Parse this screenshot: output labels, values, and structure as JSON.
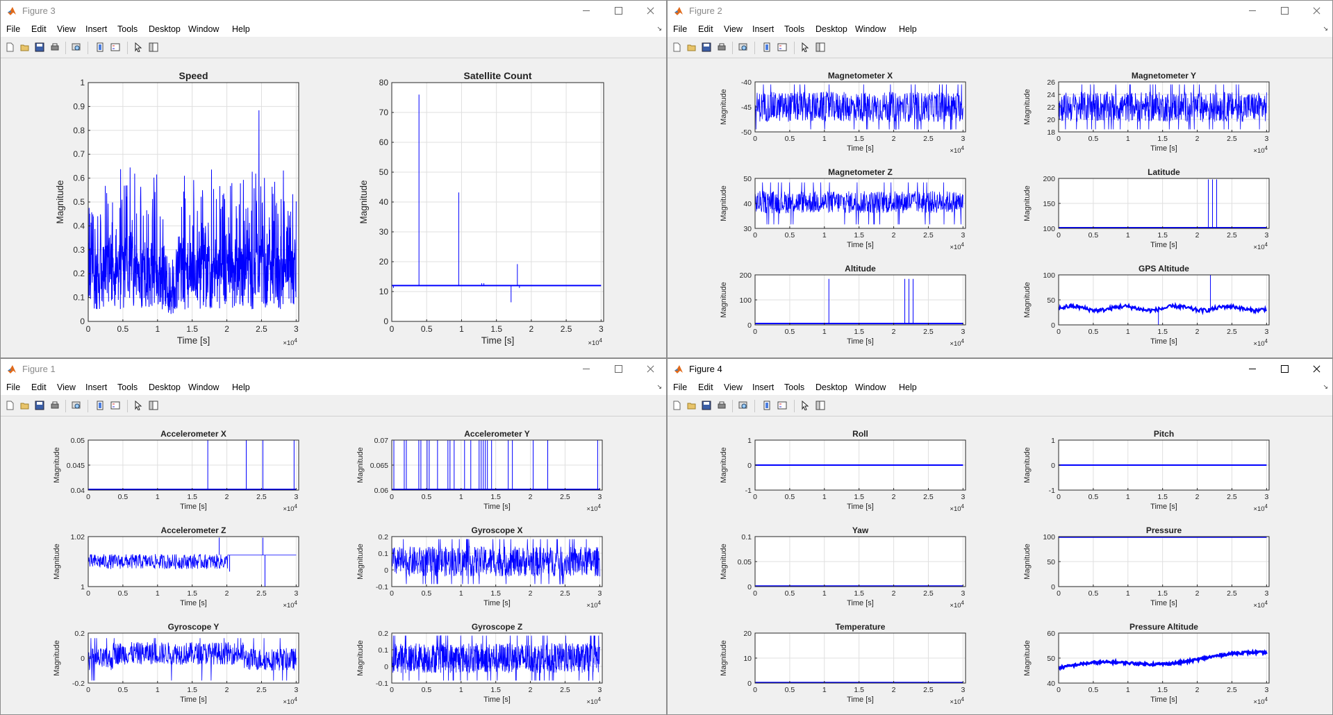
{
  "menu": [
    "File",
    "Edit",
    "View",
    "Insert",
    "Tools",
    "Desktop",
    "Window",
    "Help"
  ],
  "colors": {
    "line": "#0000ff",
    "axes": "#262626",
    "grid": "#dfdfdf",
    "background": "#f0f0f0"
  },
  "toolbar_icons": [
    "new-figure-icon",
    "open-file-icon",
    "save-icon",
    "print-icon",
    "print-preview-icon",
    "colorbar-icon",
    "legend-icon",
    "pointer-icon",
    "property-editor-icon"
  ],
  "windows": [
    {
      "id": "figure-3",
      "title": "Figure 3",
      "active": false,
      "layout": "1x2",
      "axes": [
        {
          "title": "Speed",
          "xlabel": "Time [s]",
          "ylabel": "Magnitude",
          "yticks": [
            "0",
            "0.1",
            "0.2",
            "0.3",
            "0.4",
            "0.5",
            "0.6",
            "0.7",
            "0.8",
            "0.9",
            "1"
          ],
          "xticks": [
            "0",
            "0.5",
            "1",
            "1.5",
            "2",
            "2.5",
            "3"
          ],
          "exponent": "×10",
          "exponent_power": "4"
        },
        {
          "title": "Satellite Count",
          "xlabel": "Time [s]",
          "ylabel": "Magnitude",
          "yticks": [
            "0",
            "10",
            "20",
            "30",
            "40",
            "50",
            "60",
            "70",
            "80"
          ],
          "xticks": [
            "0",
            "0.5",
            "1",
            "1.5",
            "2",
            "2.5",
            "3"
          ],
          "exponent": "×10",
          "exponent_power": "4"
        }
      ]
    },
    {
      "id": "figure-2",
      "title": "Figure 2",
      "active": false,
      "layout": "3x2",
      "axes": [
        {
          "title": "Magnetometer X",
          "xlabel": "Time [s]",
          "ylabel": "Magnitude",
          "yticks": [
            "-50",
            "-45",
            "-40"
          ],
          "xticks": [
            "0",
            "0.5",
            "1",
            "1.5",
            "2",
            "2.5",
            "3"
          ],
          "exponent": "×10",
          "exponent_power": "4"
        },
        {
          "title": "Magnetometer Y",
          "xlabel": "Time [s]",
          "ylabel": "Magnitude",
          "yticks": [
            "18",
            "20",
            "22",
            "24",
            "26"
          ],
          "xticks": [
            "0",
            "0.5",
            "1",
            "1.5",
            "2",
            "2.5",
            "3"
          ],
          "exponent": "×10",
          "exponent_power": "4"
        },
        {
          "title": "Magnetometer Z",
          "xlabel": "Time [s]",
          "ylabel": "Magnitude",
          "yticks": [
            "30",
            "40",
            "50"
          ],
          "xticks": [
            "0",
            "0.5",
            "1",
            "1.5",
            "2",
            "2.5",
            "3"
          ],
          "exponent": "×10",
          "exponent_power": "4"
        },
        {
          "title": "Latitude",
          "xlabel": "Time [s]",
          "ylabel": "Magnitude",
          "yticks": [
            "100",
            "150",
            "200"
          ],
          "xticks": [
            "0",
            "0.5",
            "1",
            "1.5",
            "2",
            "2.5",
            "3"
          ],
          "exponent": "×10",
          "exponent_power": "4"
        },
        {
          "title": "Altitude",
          "xlabel": "Time [s]",
          "ylabel": "Magnitude",
          "yticks": [
            "0",
            "100",
            "200"
          ],
          "xticks": [
            "0",
            "0.5",
            "1",
            "1.5",
            "2",
            "2.5",
            "3"
          ],
          "exponent": "×10",
          "exponent_power": "4"
        },
        {
          "title": "GPS Altitude",
          "xlabel": "Time [s]",
          "ylabel": "Magnitude",
          "yticks": [
            "0",
            "50",
            "100"
          ],
          "xticks": [
            "0",
            "0.5",
            "1",
            "1.5",
            "2",
            "2.5",
            "3"
          ],
          "exponent": "×10",
          "exponent_power": "4"
        }
      ]
    },
    {
      "id": "figure-1",
      "title": "Figure 1",
      "active": false,
      "layout": "3x2",
      "axes": [
        {
          "title": "Accelerometer X",
          "xlabel": "Time [s]",
          "ylabel": "Magnitude",
          "yticks": [
            "0.04",
            "0.045",
            "0.05"
          ],
          "xticks": [
            "0",
            "0.5",
            "1",
            "1.5",
            "2",
            "2.5",
            "3"
          ],
          "exponent": "×10",
          "exponent_power": "4"
        },
        {
          "title": "Accelerometer Y",
          "xlabel": "Time [s]",
          "ylabel": "Magnitude",
          "yticks": [
            "0.06",
            "0.065",
            "0.07"
          ],
          "xticks": [
            "0",
            "0.5",
            "1",
            "1.5",
            "2",
            "2.5",
            "3"
          ],
          "exponent": "×10",
          "exponent_power": "4"
        },
        {
          "title": "Accelerometer Z",
          "xlabel": "Time [s]",
          "ylabel": "Magnitude",
          "yticks": [
            "1",
            "1.02"
          ],
          "xticks": [
            "0",
            "0.5",
            "1",
            "1.5",
            "2",
            "2.5",
            "3"
          ],
          "exponent": "×10",
          "exponent_power": "4"
        },
        {
          "title": "Gyroscope X",
          "xlabel": "Time [s]",
          "ylabel": "Magnitude",
          "yticks": [
            "-0.1",
            "0",
            "0.1",
            "0.2"
          ],
          "xticks": [
            "0",
            "0.5",
            "1",
            "1.5",
            "2",
            "2.5",
            "3"
          ],
          "exponent": "×10",
          "exponent_power": "4"
        },
        {
          "title": "Gyroscope Y",
          "xlabel": "Time [s]",
          "ylabel": "Magnitude",
          "yticks": [
            "-0.2",
            "0",
            "0.2"
          ],
          "xticks": [
            "0",
            "0.5",
            "1",
            "1.5",
            "2",
            "2.5",
            "3"
          ],
          "exponent": "×10",
          "exponent_power": "4"
        },
        {
          "title": "Gyroscope Z",
          "xlabel": "Time [s]",
          "ylabel": "Magnitude",
          "yticks": [
            "-0.1",
            "0",
            "0.1",
            "0.2"
          ],
          "xticks": [
            "0",
            "0.5",
            "1",
            "1.5",
            "2",
            "2.5",
            "3"
          ],
          "exponent": "×10",
          "exponent_power": "4"
        }
      ]
    },
    {
      "id": "figure-4",
      "title": "Figure 4",
      "active": true,
      "layout": "3x2",
      "axes": [
        {
          "title": "Roll",
          "xlabel": "Time [s]",
          "ylabel": "Magnitude",
          "yticks": [
            "-1",
            "0",
            "1"
          ],
          "xticks": [
            "0",
            "0.5",
            "1",
            "1.5",
            "2",
            "2.5",
            "3"
          ],
          "exponent": "×10",
          "exponent_power": "4"
        },
        {
          "title": "Pitch",
          "xlabel": "Time [s]",
          "ylabel": "Magnitude",
          "yticks": [
            "-1",
            "0",
            "1"
          ],
          "xticks": [
            "0",
            "0.5",
            "1",
            "1.5",
            "2",
            "2.5",
            "3"
          ],
          "exponent": "×10",
          "exponent_power": "4"
        },
        {
          "title": "Yaw",
          "xlabel": "Time [s]",
          "ylabel": "Magnitude",
          "yticks": [
            "0",
            "0.05",
            "0.1"
          ],
          "xticks": [
            "0",
            "0.5",
            "1",
            "1.5",
            "2",
            "2.5",
            "3"
          ],
          "exponent": "×10",
          "exponent_power": "4"
        },
        {
          "title": "Pressure",
          "xlabel": "Time [s]",
          "ylabel": "Magnitude",
          "yticks": [
            "0",
            "50",
            "100"
          ],
          "xticks": [
            "0",
            "0.5",
            "1",
            "1.5",
            "2",
            "2.5",
            "3"
          ],
          "exponent": "×10",
          "exponent_power": "4"
        },
        {
          "title": "Temperature",
          "xlabel": "Time [s]",
          "ylabel": "Magnitude",
          "yticks": [
            "0",
            "10",
            "20"
          ],
          "xticks": [
            "0",
            "0.5",
            "1",
            "1.5",
            "2",
            "2.5",
            "3"
          ],
          "exponent": "×10",
          "exponent_power": "4"
        },
        {
          "title": "Pressure Altitude",
          "xlabel": "Time [s]",
          "ylabel": "Magnitude",
          "yticks": [
            "40",
            "50",
            "60"
          ],
          "xticks": [
            "0",
            "0.5",
            "1",
            "1.5",
            "2",
            "2.5",
            "3"
          ],
          "exponent": "×10",
          "exponent_power": "4"
        }
      ]
    }
  ]
}
